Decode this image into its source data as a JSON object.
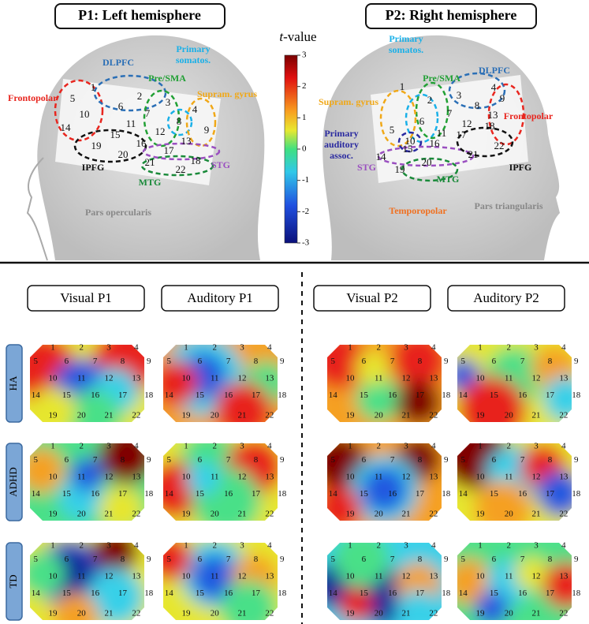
{
  "panels": [
    {
      "title": "P1: Left hemisphere",
      "regions": [
        {
          "lines": [
            "Frontopolar"
          ],
          "color": "#e8261f"
        },
        {
          "lines": [
            "DLPFC"
          ],
          "color": "#2b6fb6"
        },
        {
          "lines": [
            "Primary",
            "somatos."
          ],
          "color": "#1ab0e8"
        },
        {
          "lines": [
            "Pre/SMA"
          ],
          "color": "#22a035"
        },
        {
          "lines": [
            "Supram. gyrus"
          ],
          "color": "#f0a818"
        },
        {
          "lines": [
            "IPFG"
          ],
          "color": "#111111"
        },
        {
          "lines": [
            "Pars opercularis"
          ],
          "color": "#888888"
        },
        {
          "lines": [
            "MTG"
          ],
          "color": "#1a8a3a"
        },
        {
          "lines": [
            "STG"
          ],
          "color": "#9a4fc0"
        }
      ]
    },
    {
      "title": "P2: Right hemisphere",
      "regions": [
        {
          "lines": [
            "Primary",
            "somatos."
          ],
          "color": "#1ab0e8"
        },
        {
          "lines": [
            "Pre/SMA"
          ],
          "color": "#22a035"
        },
        {
          "lines": [
            "DLPFC"
          ],
          "color": "#2b6fb6"
        },
        {
          "lines": [
            "Supram. gyrus"
          ],
          "color": "#f0a818"
        },
        {
          "lines": [
            "Frontopolar"
          ],
          "color": "#e8261f"
        },
        {
          "lines": [
            "Primary",
            "auditory",
            "assoc."
          ],
          "color": "#2a2aa0"
        },
        {
          "lines": [
            "STG"
          ],
          "color": "#9a4fc0"
        },
        {
          "lines": [
            "MTG"
          ],
          "color": "#1a8a3a"
        },
        {
          "lines": [
            "IPFG"
          ],
          "color": "#111111"
        },
        {
          "lines": [
            "Temporopolar"
          ],
          "color": "#f07020"
        },
        {
          "lines": [
            "Pars triangularis"
          ],
          "color": "#888888"
        }
      ]
    }
  ],
  "colorbar": {
    "label_italic": "t",
    "label": "-value",
    "ticks": [
      3,
      2,
      1,
      0,
      -1,
      -2,
      -3
    ]
  },
  "columns": [
    "Visual P1",
    "Auditory P1",
    "Visual P2",
    "Auditory P2"
  ],
  "rows": [
    "HA",
    "ADHD",
    "TD"
  ],
  "channels": [
    "1",
    "2",
    "3",
    "4",
    "5",
    "6",
    "7",
    "8",
    "9",
    "10",
    "11",
    "12",
    "13",
    "14",
    "15",
    "16",
    "17",
    "18",
    "19",
    "20",
    "21",
    "22"
  ]
}
